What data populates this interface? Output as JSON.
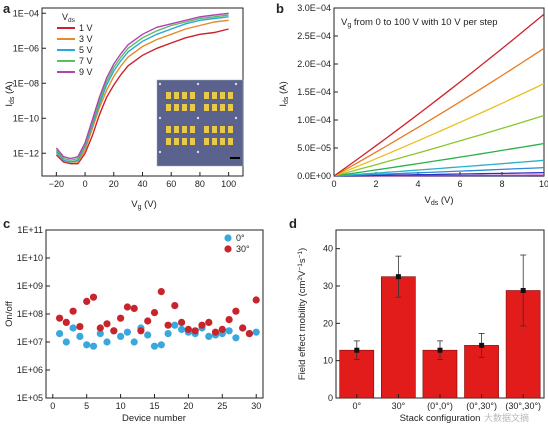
{
  "watermark": "大数据文摘",
  "chart_data": [
    {
      "panel": "a",
      "type": "line",
      "xlabel": "V_g (V)",
      "ylabel": "I_ds (A)",
      "xlim": [
        -30,
        110
      ],
      "ylim_log10": [
        -13.3,
        -3.7
      ],
      "y_scale": "log",
      "x_ticks": [
        "−20",
        "0",
        "20",
        "40",
        "60",
        "80",
        "100"
      ],
      "y_ticks": [
        "1E−12",
        "1E−10",
        "1E−08",
        "1E−06",
        "1E−04"
      ],
      "legend_title": "V_ds",
      "legend_position": "top-left",
      "inset": "optical micrograph of device array",
      "x": [
        -20,
        -15,
        -10,
        -5,
        0,
        5,
        10,
        15,
        20,
        25,
        30,
        40,
        50,
        60,
        70,
        80,
        90,
        100
      ],
      "series": [
        {
          "name": "1 V",
          "color": "#c8242c",
          "log10_y": [
            -12.1,
            -12.5,
            -12.6,
            -12.6,
            -12.0,
            -11.0,
            -9.8,
            -8.8,
            -8.1,
            -7.5,
            -7.0,
            -6.4,
            -6.0,
            -5.7,
            -5.4,
            -5.2,
            -5.1,
            -4.9
          ]
        },
        {
          "name": "3 V",
          "color": "#e88a2c",
          "log10_y": [
            -12.0,
            -12.4,
            -12.5,
            -12.5,
            -11.8,
            -10.6,
            -9.4,
            -8.4,
            -7.6,
            -7.0,
            -6.5,
            -5.9,
            -5.5,
            -5.2,
            -4.9,
            -4.7,
            -4.5,
            -4.4
          ]
        },
        {
          "name": "5 V",
          "color": "#2aa7d8",
          "log10_y": [
            -11.9,
            -12.4,
            -12.5,
            -12.4,
            -11.6,
            -10.4,
            -9.2,
            -8.1,
            -7.3,
            -6.7,
            -6.2,
            -5.6,
            -5.2,
            -4.9,
            -4.6,
            -4.4,
            -4.3,
            -4.2
          ]
        },
        {
          "name": "7 V",
          "color": "#5dbb63",
          "log10_y": [
            -11.8,
            -12.3,
            -12.4,
            -12.3,
            -11.5,
            -10.2,
            -9.0,
            -7.9,
            -7.1,
            -6.5,
            -6.0,
            -5.4,
            -5.0,
            -4.7,
            -4.5,
            -4.3,
            -4.2,
            -4.1
          ]
        },
        {
          "name": "9 V",
          "color": "#b343b0",
          "log10_y": [
            -11.7,
            -12.2,
            -12.3,
            -12.2,
            -11.4,
            -10.1,
            -8.8,
            -7.7,
            -6.9,
            -6.3,
            -5.8,
            -5.2,
            -4.8,
            -4.6,
            -4.4,
            -4.2,
            -4.1,
            -4.0
          ]
        }
      ]
    },
    {
      "panel": "b",
      "type": "line",
      "xlabel": "V_ds (V)",
      "ylabel": "I_ds (A)",
      "xlim": [
        0,
        10
      ],
      "ylim": [
        0,
        0.0003
      ],
      "x_ticks": [
        "0",
        "2",
        "4",
        "6",
        "8",
        "10"
      ],
      "y_ticks": [
        "0.0E+00",
        "5.0E−05",
        "1.0E−04",
        "1.5E−04",
        "2.0E−04",
        "2.5E−04",
        "3.0E−04"
      ],
      "annotation": "V_g from 0 to 100 V with 10 V per step",
      "vg_steps": [
        0,
        10,
        20,
        30,
        40,
        50,
        60,
        70,
        80,
        90,
        100
      ],
      "i_at_10V": [
        0.0,
        5e-07,
        1.5e-06,
        6e-06,
        1.5e-05,
        2.8e-05,
        5.8e-05,
        0.000108,
        0.000165,
        0.000228,
        0.000289
      ],
      "colors": [
        "#000000",
        "#3a3a9a",
        "#b030b0",
        "#3030c0",
        "#2a8ad8",
        "#28b0c8",
        "#2ab04a",
        "#8ac82a",
        "#e8c020",
        "#e87a20",
        "#d02028"
      ]
    },
    {
      "panel": "c",
      "type": "scatter",
      "xlabel": "Device number",
      "ylabel": "On/off",
      "xlim": [
        -1,
        31
      ],
      "ylim_log10": [
        5,
        11
      ],
      "y_scale": "log",
      "x_ticks": [
        "0",
        "5",
        "10",
        "15",
        "20",
        "25",
        "30"
      ],
      "y_ticks": [
        "1E+05",
        "1E+06",
        "1E+07",
        "1E+08",
        "1E+09",
        "1E+10",
        "1E+11"
      ],
      "legend_position": "top-right",
      "series": [
        {
          "name": "0°",
          "color": "#3aa8dc",
          "x": [
            1,
            2,
            3,
            4,
            5,
            6,
            7,
            8,
            9,
            10,
            11,
            12,
            13,
            14,
            15,
            16,
            17,
            18,
            19,
            20,
            21,
            22,
            23,
            24,
            25,
            26,
            27,
            28,
            29,
            30
          ],
          "log10_y": [
            7.3,
            7.0,
            7.5,
            7.2,
            6.9,
            6.85,
            7.3,
            7.0,
            7.4,
            7.2,
            7.35,
            7.0,
            7.5,
            7.25,
            6.85,
            6.9,
            7.3,
            7.6,
            7.45,
            7.35,
            7.3,
            7.5,
            7.2,
            7.25,
            7.3,
            7.4,
            7.15,
            7.5,
            7.3,
            7.35
          ]
        },
        {
          "name": "30°",
          "color": "#c8242c",
          "x": [
            1,
            2,
            3,
            4,
            5,
            6,
            7,
            8,
            9,
            10,
            11,
            12,
            13,
            14,
            15,
            16,
            17,
            18,
            19,
            20,
            21,
            22,
            23,
            24,
            25,
            26,
            27,
            28,
            29,
            30
          ],
          "log10_y": [
            7.85,
            7.7,
            8.1,
            7.55,
            8.45,
            8.6,
            7.5,
            7.65,
            7.4,
            7.85,
            8.25,
            8.2,
            7.4,
            7.75,
            8.05,
            8.8,
            7.6,
            8.3,
            7.7,
            7.45,
            7.4,
            7.6,
            7.7,
            7.35,
            7.45,
            7.8,
            8.1,
            7.5,
            7.3,
            8.5
          ]
        }
      ]
    },
    {
      "panel": "d",
      "type": "bar",
      "xlabel": "Stack configuration",
      "ylabel": "Field effect mobility (cm² V⁻¹ s⁻¹)",
      "ylim": [
        0,
        45
      ],
      "y_ticks": [
        "0",
        "10",
        "20",
        "30",
        "40"
      ],
      "categories": [
        "0°",
        "30°",
        "(0°,0°)",
        "(0°,30°)",
        "(30°,30°)"
      ],
      "values": [
        12.8,
        32.5,
        12.8,
        14.1,
        28.8
      ],
      "error": [
        2.5,
        5.5,
        2.5,
        3.2,
        9.5
      ],
      "bar_color": "#e21b1b"
    }
  ]
}
